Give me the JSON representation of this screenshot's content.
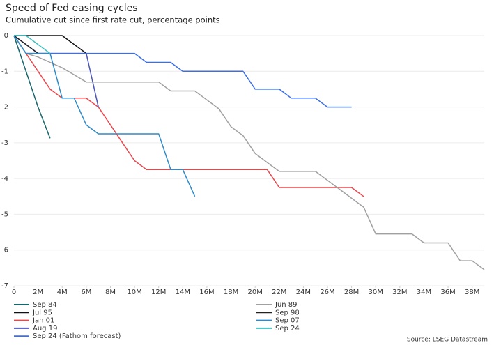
{
  "chart_data": {
    "type": "line",
    "title": "Speed of Fed easing cycles",
    "subtitle": "Cumulative cut since first rate cut, percentage points",
    "source": "Source: LSEG Datastream",
    "grid": true,
    "xlim": [
      0,
      39
    ],
    "ylim": [
      -7,
      0
    ],
    "xticks": [
      0,
      {
        "value": 2,
        "label": "2M"
      },
      {
        "value": 4,
        "label": "4M"
      },
      {
        "value": 6,
        "label": "6M"
      },
      {
        "value": 8,
        "label": "8M"
      },
      {
        "value": 10,
        "label": "10M"
      },
      {
        "value": 12,
        "label": "12M"
      },
      {
        "value": 14,
        "label": "14M"
      },
      {
        "value": 16,
        "label": "16M"
      },
      {
        "value": 18,
        "label": "18M"
      },
      {
        "value": 20,
        "label": "20M"
      },
      {
        "value": 22,
        "label": "22M"
      },
      {
        "value": 24,
        "label": "24M"
      },
      {
        "value": 26,
        "label": "26M"
      },
      {
        "value": 28,
        "label": "28M"
      },
      {
        "value": 30,
        "label": "30M"
      },
      {
        "value": 32,
        "label": "32M"
      },
      {
        "value": 34,
        "label": "34M"
      },
      {
        "value": 36,
        "label": "36M"
      },
      {
        "value": 38,
        "label": "38M"
      }
    ],
    "yticks": [
      0,
      -1,
      -2,
      -3,
      -4,
      -5,
      -6,
      -7
    ],
    "series": [
      {
        "name": "Sep 84",
        "color": "#17666b",
        "x": [
          0,
          1,
          2,
          3
        ],
        "values": [
          0,
          -1,
          -2,
          -2.875
        ]
      },
      {
        "name": "Jul 95",
        "color": "#111111",
        "x": [
          0,
          1,
          2,
          3,
          4,
          5,
          6
        ],
        "values": [
          0,
          0,
          0,
          0,
          0,
          -0.25,
          -0.5
        ]
      },
      {
        "name": "Jan 01",
        "color": "#e8474c",
        "x": [
          0,
          1,
          2,
          3,
          4,
          5,
          6,
          7,
          8,
          9,
          10,
          11,
          12,
          13,
          14,
          15,
          16,
          17,
          18,
          19,
          20,
          21,
          22,
          23,
          24,
          25,
          26,
          27,
          28,
          29
        ],
        "values": [
          0,
          -0.5,
          -1,
          -1.5,
          -1.75,
          -1.75,
          -1.75,
          -2,
          -2.5,
          -3,
          -3.5,
          -3.75,
          -3.75,
          -3.75,
          -3.75,
          -3.75,
          -3.75,
          -3.75,
          -3.75,
          -3.75,
          -3.75,
          -3.75,
          -4.25,
          -4.25,
          -4.25,
          -4.25,
          -4.25,
          -4.25,
          -4.25,
          -4.5
        ]
      },
      {
        "name": "Aug 19",
        "color": "#4b55b8",
        "x": [
          0,
          1,
          2,
          3,
          4,
          5,
          6,
          7
        ],
        "values": [
          0,
          -0.25,
          -0.5,
          -0.5,
          -0.5,
          -0.5,
          -0.5,
          -2
        ]
      },
      {
        "name": "Sep 24 (Fathom forecast)",
        "color": "#3c6fe6",
        "x": [
          0,
          1,
          2,
          3,
          4,
          5,
          6,
          7,
          8,
          9,
          10,
          11,
          12,
          13,
          14,
          15,
          16,
          17,
          18,
          19,
          20,
          21,
          22,
          23,
          24,
          25,
          26,
          27,
          28
        ],
        "values": [
          0,
          -0.5,
          -0.5,
          -0.5,
          -0.5,
          -0.5,
          -0.5,
          -0.5,
          -0.5,
          -0.5,
          -0.5,
          -0.75,
          -0.75,
          -0.75,
          -1,
          -1,
          -1,
          -1,
          -1,
          -1,
          -1.5,
          -1.5,
          -1.5,
          -1.75,
          -1.75,
          -1.75,
          -2,
          -2,
          -2
        ]
      },
      {
        "name": "Jun 89",
        "color": "#a0a0a0",
        "x": [
          0,
          1,
          2,
          3,
          4,
          5,
          6,
          7,
          8,
          9,
          10,
          11,
          12,
          13,
          14,
          15,
          16,
          17,
          18,
          19,
          20,
          21,
          22,
          23,
          24,
          25,
          26,
          27,
          28,
          29,
          30,
          31,
          32,
          33,
          34,
          35,
          36,
          37,
          38,
          39
        ],
        "values": [
          0,
          -0.5,
          -0.6,
          -0.75,
          -0.9,
          -1.1,
          -1.3,
          -1.3,
          -1.3,
          -1.3,
          -1.3,
          -1.3,
          -1.3,
          -1.55,
          -1.55,
          -1.55,
          -1.8,
          -2.05,
          -2.55,
          -2.8,
          -3.3,
          -3.55,
          -3.8,
          -3.8,
          -3.8,
          -3.8,
          -4.05,
          -4.3,
          -4.55,
          -4.8,
          -5.55,
          -5.55,
          -5.55,
          -5.55,
          -5.8,
          -5.8,
          -5.8,
          -6.3,
          -6.3,
          -6.55
        ]
      },
      {
        "name": "Sep 98",
        "color": "#222222",
        "x": [
          0,
          1,
          2
        ],
        "values": [
          0,
          -0.25,
          -0.5
        ]
      },
      {
        "name": "Sep 07",
        "color": "#2f8ac6",
        "x": [
          0,
          1,
          2,
          3,
          4,
          5,
          6,
          7,
          8,
          9,
          10,
          11,
          12,
          13,
          14,
          15
        ],
        "values": [
          0,
          -0.5,
          -0.5,
          -0.5,
          -1.75,
          -1.75,
          -2.5,
          -2.75,
          -2.75,
          -2.75,
          -2.75,
          -2.75,
          -2.75,
          -3.75,
          -3.75,
          -4.5
        ]
      },
      {
        "name": "Sep 24",
        "color": "#3dbdbd",
        "x": [
          0,
          1,
          2,
          3
        ],
        "values": [
          0,
          0,
          -0.25,
          -0.5
        ]
      }
    ]
  }
}
